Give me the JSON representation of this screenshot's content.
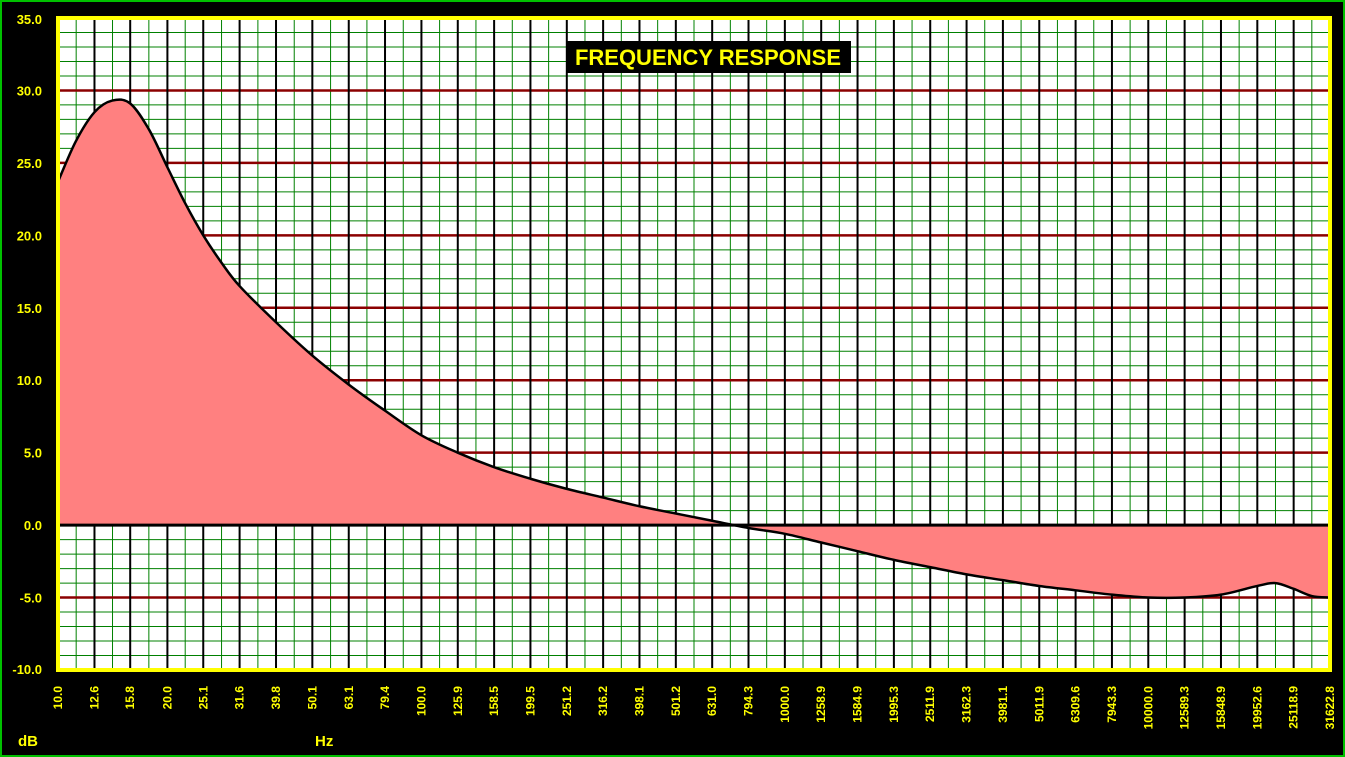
{
  "chart_data": {
    "type": "area",
    "title": "FREQUENCY RESPONSE",
    "xlabel": "Hz",
    "ylabel": "dB",
    "x_scale": "log",
    "xlim": [
      10.0,
      31622.8
    ],
    "ylim": [
      -10.0,
      35.0
    ],
    "y_ticks": [
      "35.0",
      "30.0",
      "25.0",
      "20.0",
      "15.0",
      "10.0",
      "5.0",
      "0.0",
      "-5.0",
      "-10.0"
    ],
    "x_ticks": [
      "10.0",
      "12.6",
      "15.8",
      "20.0",
      "25.1",
      "31.6",
      "39.8",
      "50.1",
      "63.1",
      "79.4",
      "100.0",
      "125.9",
      "158.5",
      "199.5",
      "251.2",
      "316.2",
      "398.1",
      "501.2",
      "631.0",
      "794.3",
      "1000.0",
      "1258.9",
      "1584.9",
      "1995.3",
      "2511.9",
      "3162.3",
      "3981.1",
      "5011.9",
      "6309.6",
      "7943.3",
      "10000.0",
      "12589.3",
      "15848.9",
      "19952.6",
      "25118.9",
      "31622.8"
    ],
    "grid": true,
    "series": [
      {
        "x": [
          10.0,
          11.2,
          12.6,
          14.1,
          15.8,
          17.8,
          20.0,
          22.4,
          25.1,
          28.2,
          31.6,
          39.8,
          50.1,
          63.1,
          79.4,
          100.0,
          125.9,
          158.5,
          199.5,
          251.2,
          316.2,
          398.1,
          501.2,
          631.0,
          794.3,
          1000.0,
          1258.9,
          1584.9,
          1995.3,
          2511.9,
          3162.3,
          3981.1,
          5011.9,
          6309.6,
          7943.3,
          10000.0,
          12589.3,
          15848.9,
          19952.6,
          22387.2,
          25118.9,
          28183.8,
          31622.8
        ],
        "values": [
          23.7,
          26.5,
          28.5,
          29.3,
          29.1,
          27.3,
          24.7,
          22.2,
          20.0,
          18.1,
          16.5,
          14.0,
          11.7,
          9.7,
          7.9,
          6.2,
          5.0,
          4.0,
          3.2,
          2.5,
          1.9,
          1.3,
          0.8,
          0.3,
          -0.2,
          -0.6,
          -1.2,
          -1.8,
          -2.4,
          -2.9,
          -3.4,
          -3.8,
          -4.2,
          -4.5,
          -4.8,
          -5.0,
          -5.0,
          -4.8,
          -4.2,
          -4.0,
          -4.4,
          -4.9,
          -5.0
        ]
      }
    ]
  },
  "colors": {
    "background": "#000000",
    "plot_background": "#ffffff",
    "major_x_grid": "#000000",
    "minor_grid": "#008000",
    "major_y_grid": "#8b0000",
    "zero_line": "#000000",
    "area_fill": "#ff8080",
    "curve": "#000000",
    "border": "#ffff00",
    "outer_border": "#00c000",
    "label_text": "#ffff00",
    "title_background": "#000000"
  }
}
